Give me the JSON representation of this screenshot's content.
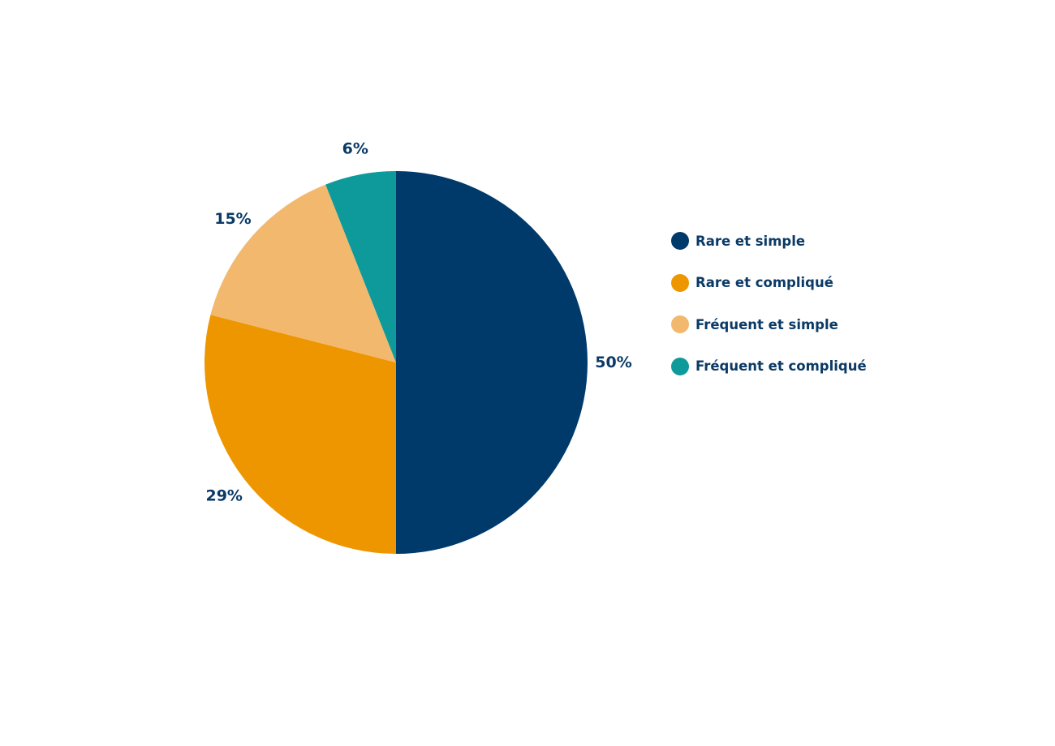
{
  "chart_data": {
    "type": "pie",
    "title": "",
    "start_angle": "top",
    "direction": "clockwise",
    "legend_position": "right",
    "slices": [
      {
        "name": "Rare et simple",
        "value": 50,
        "label": "50%",
        "color": "#003a6b"
      },
      {
        "name": "Rare et compliqué",
        "value": 29,
        "label": "29%",
        "color": "#ee9600"
      },
      {
        "name": "Fréquent et simple",
        "value": 15,
        "label": "15%",
        "color": "#f2b96e"
      },
      {
        "name": "Fréquent et compliqué",
        "value": 6,
        "label": "6%",
        "color": "#0e9a9b"
      }
    ]
  }
}
